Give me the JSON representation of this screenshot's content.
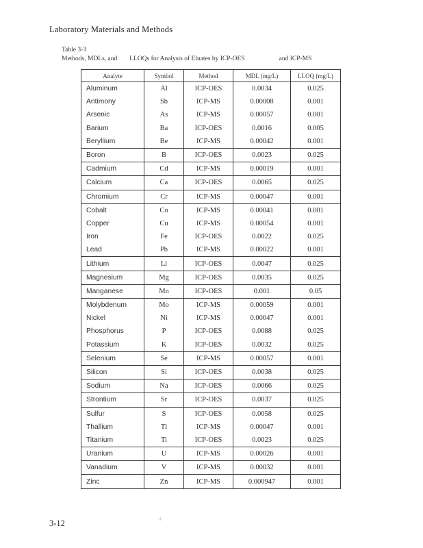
{
  "page": {
    "header": "Laboratory Materials and Methods",
    "footer": "3-12",
    "artifact": "· ·4"
  },
  "caption": {
    "line1": "Table 3-3",
    "seg1": "Methods, MDLs, and",
    "seg2": "LLOQs for Analysis of Eluates by ICP-OES",
    "seg3": "and ICP-MS"
  },
  "table": {
    "columns": [
      "Analyte",
      "Symbol",
      "Method",
      "MDL (mg/L)",
      "LLOQ (mg/L)"
    ],
    "groups": [
      {
        "rows": [
          [
            "Aluminum",
            "Al",
            "ICP-OES",
            "0.0034",
            "0.025"
          ],
          [
            "Antimony",
            "Sb",
            "ICP-MS",
            "0.00008",
            "0.001"
          ],
          [
            "Arsenic",
            "As",
            "ICP-MS",
            "0.00057",
            "0.001"
          ],
          [
            "Barium",
            "Ba",
            "ICP-OES",
            "0.0016",
            "0.005"
          ],
          [
            "Beryllium",
            "Be",
            "ICP-MS",
            "0.00042",
            "0.001"
          ]
        ]
      },
      {
        "rows": [
          [
            "Boron",
            "B",
            "ICP-OES",
            "0.0023",
            "0.025"
          ]
        ]
      },
      {
        "rows": [
          [
            "Cadmium",
            "Cd",
            "ICP-MS",
            "0.00019",
            "0.001"
          ]
        ]
      },
      {
        "rows": [
          [
            "Calcium",
            "Ca",
            "ICP-OES",
            "0.0065",
            "0.025"
          ]
        ]
      },
      {
        "rows": [
          [
            "Chromium",
            "Cr",
            "ICP-MS",
            "0.00047",
            "0.001"
          ]
        ]
      },
      {
        "rows": [
          [
            "Cobalt",
            "Co",
            "ICP-MS",
            "0.00041",
            "0.001"
          ],
          [
            "Copper",
            "Cu",
            "ICP-MS",
            "0.00054",
            "0.001"
          ],
          [
            "Iron",
            "Fe",
            "ICP-OES",
            "0.0022",
            "0.025"
          ],
          [
            "Lead",
            "Pb",
            "ICP-MS",
            "0.00022",
            "0.001"
          ]
        ]
      },
      {
        "rows": [
          [
            "Lithium",
            "Li",
            "ICP-OES",
            "0.0047",
            "0.025"
          ]
        ]
      },
      {
        "rows": [
          [
            "Magnesium",
            "Mg",
            "ICP-OES",
            "0.0035",
            "0.025"
          ]
        ]
      },
      {
        "rows": [
          [
            "Manganese",
            "Mn",
            "ICP-OES",
            "0.001",
            "0.05"
          ]
        ]
      },
      {
        "rows": [
          [
            "Molybdenum",
            "Mo",
            "ICP-MS",
            "0.00059",
            "0.001"
          ],
          [
            "Nickel",
            "Ni",
            "ICP-MS",
            "0.00047",
            "0.001"
          ],
          [
            "Phosphorus",
            "P",
            "ICP-OES",
            "0.0088",
            "0.025"
          ],
          [
            "Potassium",
            "K",
            "ICP-OES",
            "0.0032",
            "0.025"
          ]
        ]
      },
      {
        "rows": [
          [
            "Selenium",
            "Se",
            "ICP-MS",
            "0.00057",
            "0.001"
          ]
        ]
      },
      {
        "rows": [
          [
            "Silicon",
            "Si",
            "ICP-OES",
            "0.0038",
            "0.025"
          ]
        ]
      },
      {
        "rows": [
          [
            "Sodium",
            "Na",
            "ICP-OES",
            "0.0066",
            "0.025"
          ]
        ]
      },
      {
        "rows": [
          [
            "Strontium",
            "Sr",
            "ICP-OES",
            "0.0037",
            "0.025"
          ]
        ]
      },
      {
        "rows": [
          [
            "Sulfur",
            "S",
            "ICP-OES",
            "0.0058",
            "0.025"
          ],
          [
            "Thallium",
            "Tl",
            "ICP-MS",
            "0.00047",
            "0.001"
          ],
          [
            "Titanium",
            "Ti",
            "ICP-OES",
            "0.0023",
            "0.025"
          ]
        ]
      },
      {
        "rows": [
          [
            "Uranium",
            "U",
            "ICP-MS",
            "0.00026",
            "0.001"
          ]
        ]
      },
      {
        "rows": [
          [
            "Vanadium",
            "V",
            "ICP-MS",
            "0.00032",
            "0.001"
          ]
        ]
      },
      {
        "rows": [
          [
            "Zinc",
            "Zn",
            "ICP-MS",
            "0.000947",
            "0.001"
          ]
        ]
      }
    ]
  }
}
